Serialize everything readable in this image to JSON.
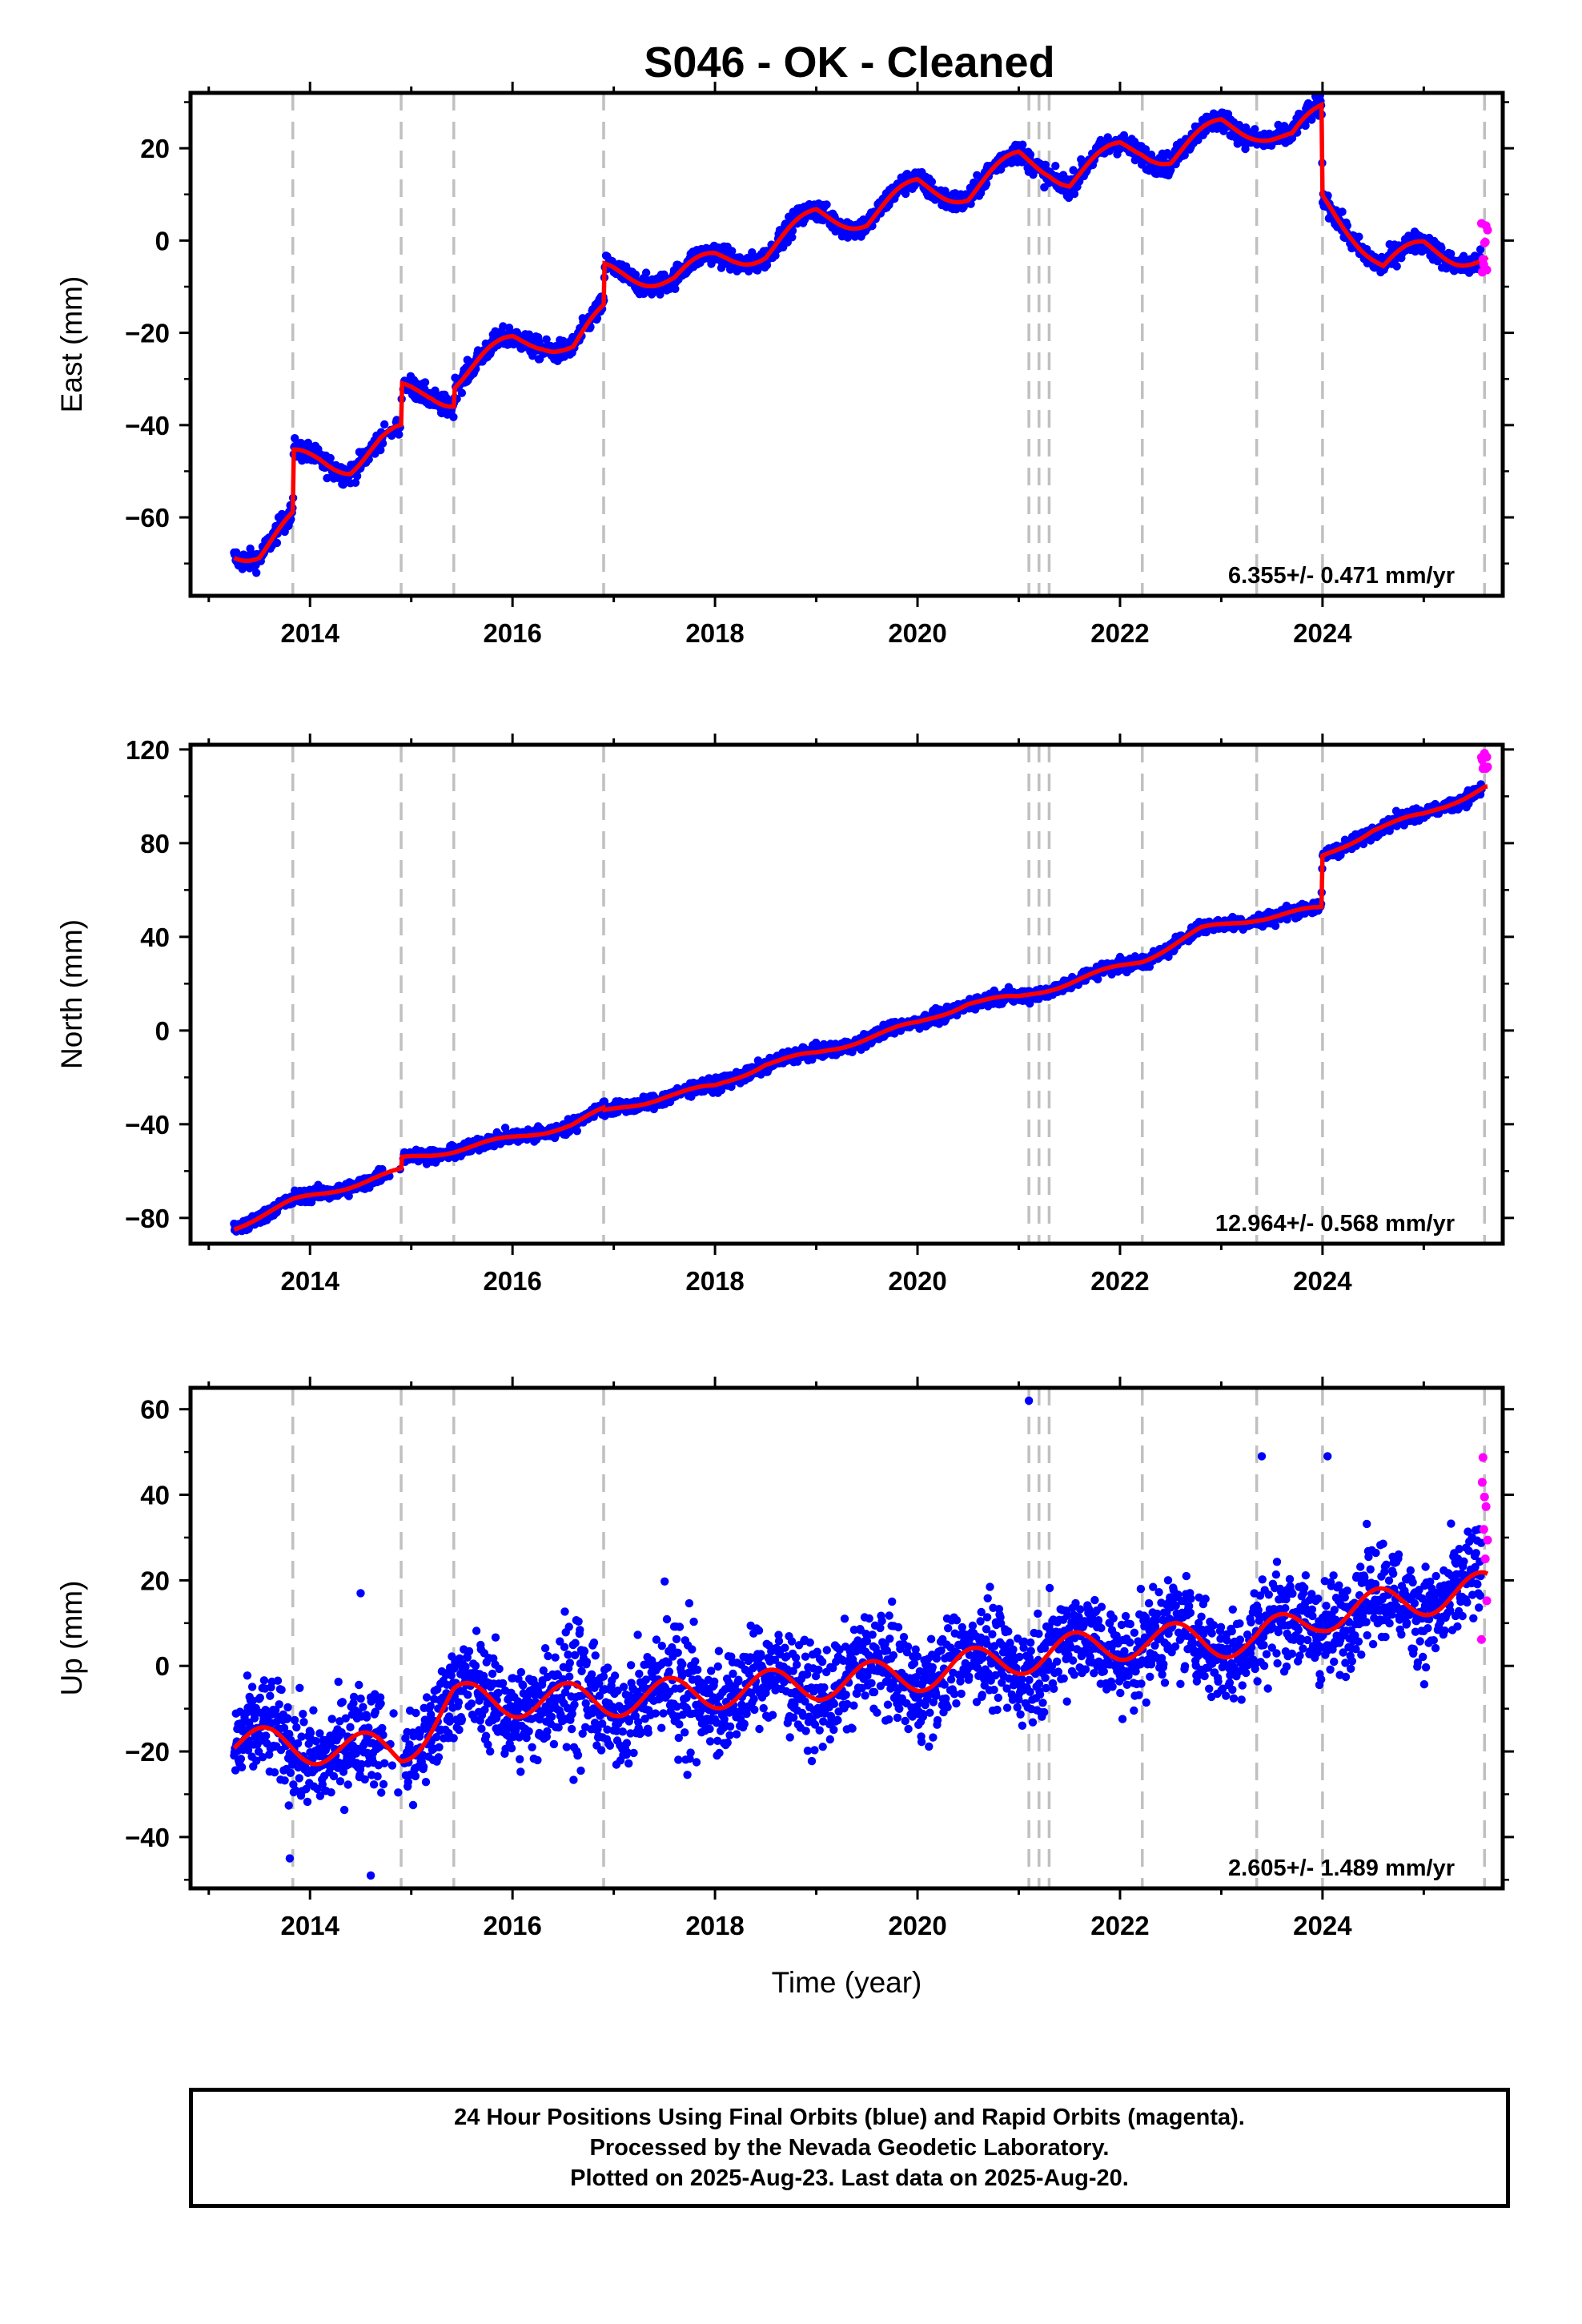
{
  "title": "S046  - OK - Cleaned",
  "footer": {
    "lines": [
      "24 Hour Positions Using Final Orbits (blue) and Rapid Orbits (magenta).",
      "Processed by the Nevada Geodetic Laboratory.",
      "Plotted on 2025-Aug-23. Last data on 2025-Aug-20."
    ]
  },
  "colors": {
    "final_orbits": "#0000ff",
    "rapid_orbits": "#ff00ff",
    "model": "#ff0000",
    "event_lines": "#c0c0c0"
  },
  "chart_data": [
    {
      "type": "scatter",
      "component": "east",
      "ylabel": "East (mm)",
      "xlabel": "",
      "xlim": [
        2012.82,
        2025.78
      ],
      "ylim": [
        -77,
        32
      ],
      "xticks": [
        2014,
        2016,
        2018,
        2020,
        2022,
        2024
      ],
      "yticks": [
        -60,
        -40,
        -20,
        0,
        20
      ],
      "rate_text": "6.355+/- 0.471 mm/yr",
      "event_lines": [
        2013.83,
        2014.9,
        2015.42,
        2016.9,
        2021.1,
        2021.2,
        2021.3,
        2022.22,
        2023.35,
        2024.0,
        2025.6
      ],
      "data_start": 2013.25,
      "data_end": 2025.63,
      "noise_mm": 1.6,
      "rapid_orbits": {
        "x_start": 2025.57,
        "x_end": 2025.63,
        "y_min": -7,
        "y_max": 4
      },
      "trend": {
        "x": [
          2013.25,
          2013.5,
          2013.83,
          2013.84,
          2014.1,
          2014.4,
          2014.7,
          2014.9,
          2014.91,
          2015.2,
          2015.42,
          2015.43,
          2015.7,
          2016.0,
          2016.3,
          2016.6,
          2016.9,
          2016.91,
          2017.2,
          2017.6,
          2018.0,
          2018.5,
          2019.0,
          2019.5,
          2020.0,
          2020.5,
          2021.0,
          2021.3,
          2021.5,
          2022.0,
          2022.22,
          2022.5,
          2023.0,
          2023.35,
          2023.7,
          2023.99,
          2024.0,
          2024.3,
          2024.6,
          2025.0,
          2025.3,
          2025.6
        ],
        "y": [
          -67,
          -67.5,
          -61,
          -47.5,
          -47.5,
          -48.5,
          -44,
          -42,
          -33,
          -33,
          -34,
          -30,
          -26,
          -22,
          -21.5,
          -23,
          -16,
          -7,
          -7.5,
          -8,
          -4,
          -2.5,
          5.5,
          4.5,
          12,
          10,
          18,
          16,
          13,
          20,
          20,
          18,
          25,
          24,
          22,
          28,
          8.5,
          2,
          -5.5,
          -1.5,
          -3,
          -4
        ]
      },
      "seasonal": [
        {
          "x": 2017.8,
          "amp": 1.5
        }
      ]
    },
    {
      "type": "scatter",
      "component": "north",
      "ylabel": "North (mm)",
      "xlabel": "",
      "xlim": [
        2012.82,
        2025.78
      ],
      "ylim": [
        -91,
        122
      ],
      "xticks": [
        2014,
        2016,
        2018,
        2020,
        2022,
        2024
      ],
      "yticks": [
        -80,
        -40,
        0,
        40,
        80,
        120
      ],
      "rate_text": "12.964+/- 0.568 mm/yr",
      "event_lines": [
        2013.83,
        2014.9,
        2015.42,
        2016.9,
        2021.1,
        2021.2,
        2021.3,
        2022.22,
        2023.35,
        2024.0,
        2025.6
      ],
      "data_start": 2013.25,
      "data_end": 2025.63,
      "noise_mm": 2.0,
      "rapid_orbits": {
        "x_start": 2025.57,
        "x_end": 2025.63,
        "y_min": 108,
        "y_max": 119
      },
      "trend": {
        "x": [
          2013.25,
          2013.83,
          2014.9,
          2014.91,
          2015.42,
          2016.0,
          2016.6,
          2016.9,
          2016.91,
          2017.5,
          2018.0,
          2018.5,
          2019.0,
          2019.5,
          2020.0,
          2020.5,
          2021.0,
          2021.3,
          2022.22,
          2022.8,
          2023.35,
          2023.36,
          2023.99,
          2024.0,
          2024.5,
          2025.0,
          2025.6
        ],
        "y": [
          -84,
          -73,
          -60,
          -55,
          -51,
          -46,
          -40,
          -34,
          -35,
          -28,
          -24,
          -14,
          -10,
          -3,
          3,
          12,
          14,
          18,
          30,
          43,
          48,
          48,
          52,
          74,
          86,
          92,
          104
        ]
      }
    },
    {
      "type": "scatter",
      "component": "up",
      "ylabel": "Up (mm)",
      "xlabel": "Time (year)",
      "xlim": [
        2012.82,
        2025.78
      ],
      "ylim": [
        -52,
        65
      ],
      "xticks": [
        2014,
        2016,
        2018,
        2020,
        2022,
        2024
      ],
      "yticks": [
        -40,
        -20,
        0,
        20,
        40,
        60
      ],
      "rate_text": "2.605+/- 1.489 mm/yr",
      "event_lines": [
        2013.83,
        2014.9,
        2015.42,
        2016.9,
        2021.1,
        2021.2,
        2021.3,
        2022.22,
        2023.35,
        2024.0,
        2025.6
      ],
      "data_start": 2013.25,
      "data_end": 2025.63,
      "noise_mm": 8.0,
      "rapid_orbits": {
        "x_start": 2025.57,
        "x_end": 2025.63,
        "y_min": 4,
        "y_max": 49
      },
      "outliers": [
        [
          2021.1,
          62
        ],
        [
          2023.4,
          49
        ],
        [
          2024.05,
          49
        ],
        [
          2014.5,
          17
        ],
        [
          2013.8,
          -45
        ],
        [
          2014.6,
          -49
        ]
      ],
      "trend": {
        "x": [
          2013.25,
          2014.9,
          2015.42,
          2016.9,
          2018.0,
          2020.0,
          2021.0,
          2022.22,
          2023.35,
          2024.0,
          2025.6
        ],
        "y": [
          -18,
          -20,
          -8,
          -8,
          -6,
          -2,
          2,
          6,
          6,
          12,
          18
        ]
      },
      "seasonal_amplitude": 4.0
    }
  ]
}
